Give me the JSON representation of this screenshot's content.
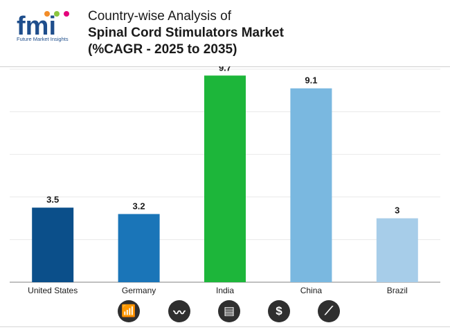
{
  "header": {
    "logo_text": "fmi",
    "logo_tagline": "Future Market Insights",
    "title_line1": "Country-wise Analysis of",
    "title_line2": "Spinal Cord Stimulators Market",
    "title_line3": "(%CAGR - 2025 to 2035)"
  },
  "colors": {
    "logo_blue": "#1f4e8c",
    "logo_dots": [
      "#f28c28",
      "#8cc63f",
      "#e4007c"
    ]
  },
  "footer_icons": [
    {
      "name": "growth-chart-icon",
      "glyph": "📶"
    },
    {
      "name": "trend-analysis-icon",
      "glyph": "〰"
    },
    {
      "name": "report-document-icon",
      "glyph": "▤"
    },
    {
      "name": "dollar-icon",
      "glyph": "$"
    },
    {
      "name": "line-chart-icon",
      "glyph": "⟋"
    }
  ],
  "chart_data": {
    "type": "bar",
    "title": "Country-wise Analysis of Spinal Cord Stimulators Market (%CAGR - 2025 to 2035)",
    "categories": [
      "United States",
      "Germany",
      "India",
      "China",
      "Brazil"
    ],
    "values": [
      3.5,
      3.2,
      9.7,
      9.1,
      3
    ],
    "value_labels": [
      "3.5",
      "3.2",
      "9.7",
      "9.1",
      "3"
    ],
    "bar_colors": [
      "#0b4f8a",
      "#1a75b8",
      "#1db63a",
      "#7ab8e0",
      "#a7cde9"
    ],
    "xlabel": "",
    "ylabel": "",
    "ylim": [
      0,
      10
    ],
    "grid": true,
    "legend": "none"
  }
}
